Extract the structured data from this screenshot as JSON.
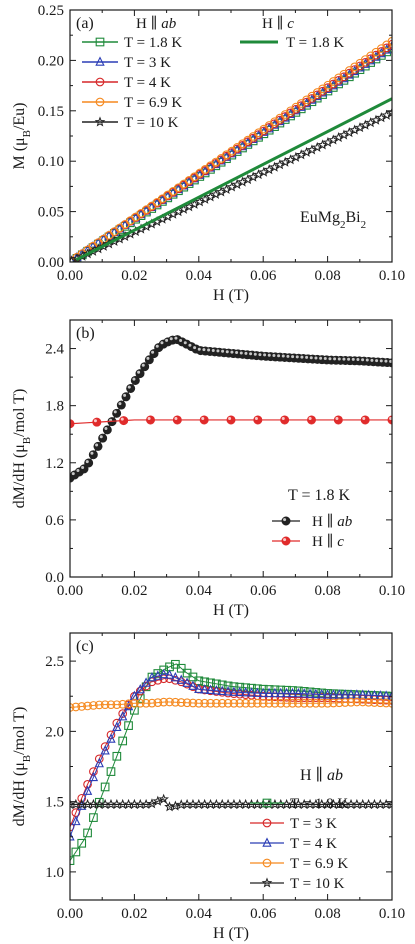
{
  "chart_data": [
    {
      "type": "line",
      "panel_label": "(a)",
      "xlabel": "H (T)",
      "ylabel": "M (μB/Eu)",
      "xlim": [
        0,
        0.1
      ],
      "ylim": [
        0,
        0.25
      ],
      "xticks": [
        "0.00",
        "0.02",
        "0.04",
        "0.06",
        "0.08",
        "0.10"
      ],
      "yticks": [
        "0.00",
        "0.05",
        "0.10",
        "0.15",
        "0.20",
        "0.25"
      ],
      "legend_headers": [
        "H ∥ ab",
        "H ∥ c"
      ],
      "annotation": "EuMg2Bi2",
      "series": [
        {
          "name": "T = 1.8 K",
          "group": "H ∥ ab",
          "color": "#1f8a3a",
          "marker": "square",
          "slope": 2.13,
          "y0": -0.001
        },
        {
          "name": "T = 3 K",
          "group": "H ∥ ab",
          "color": "#2b3db5",
          "marker": "triangle",
          "slope": 2.14,
          "y0": 0.0
        },
        {
          "name": "T = 4 K",
          "group": "H ∥ ab",
          "color": "#d62728",
          "marker": "circle",
          "slope": 2.16,
          "y0": 0.0
        },
        {
          "name": "T = 6.9 K",
          "group": "H ∥ ab",
          "color": "#f5891f",
          "marker": "circle",
          "slope": 2.19,
          "y0": 0.0
        },
        {
          "name": "T = 10 K",
          "group": "H ∥ ab",
          "color": "#222222",
          "marker": "star",
          "slope": 1.48,
          "y0": 0.0
        },
        {
          "name": "T = 1.8 K",
          "group": "H ∥ c",
          "color": "#1f8a3a",
          "marker": "line",
          "slope": 1.63,
          "y0": -0.001
        }
      ]
    },
    {
      "type": "line",
      "panel_label": "(b)",
      "xlabel": "H (T)",
      "ylabel": "dM/dH (μB/mol T)",
      "xlim": [
        0,
        0.1
      ],
      "ylim": [
        0,
        2.7
      ],
      "xticks": [
        "0.00",
        "0.02",
        "0.04",
        "0.06",
        "0.08",
        "0.10"
      ],
      "yticks": [
        "0.0",
        "0.6",
        "1.2",
        "1.8",
        "2.4"
      ],
      "annotation": "T = 1.8 K",
      "series": [
        {
          "name": "H ∥ ab",
          "color": "#222222",
          "marker": "ball",
          "x": [
            0.0,
            0.005,
            0.01,
            0.015,
            0.02,
            0.025,
            0.028,
            0.031,
            0.033,
            0.036,
            0.04,
            0.05,
            0.06,
            0.07,
            0.08,
            0.09,
            0.1
          ],
          "y": [
            1.04,
            1.15,
            1.45,
            1.75,
            2.05,
            2.3,
            2.43,
            2.48,
            2.5,
            2.45,
            2.38,
            2.35,
            2.32,
            2.3,
            2.28,
            2.27,
            2.25
          ]
        },
        {
          "name": "H ∥ c",
          "color": "#e02b2b",
          "marker": "ball",
          "x": [
            0.0,
            0.005,
            0.01,
            0.015,
            0.02,
            0.03,
            0.04,
            0.05,
            0.06,
            0.07,
            0.08,
            0.09,
            0.1
          ],
          "y": [
            1.61,
            1.62,
            1.63,
            1.64,
            1.65,
            1.65,
            1.65,
            1.65,
            1.65,
            1.65,
            1.65,
            1.65,
            1.65
          ]
        }
      ]
    },
    {
      "type": "scatter",
      "panel_label": "(c)",
      "xlabel": "H (T)",
      "ylabel": "dM/dH (μB/mol T)",
      "xlim": [
        0,
        0.1
      ],
      "ylim": [
        0.8,
        2.7
      ],
      "xticks": [
        "0.00",
        "0.02",
        "0.04",
        "0.06",
        "0.08",
        "0.10"
      ],
      "yticks": [
        "1.0",
        "1.5",
        "2.0",
        "2.5"
      ],
      "annotation": "H ∥ ab",
      "series": [
        {
          "name": "T = 1.8 K",
          "color": "#1f8a3a",
          "marker": "square",
          "x": [
            0.0,
            0.005,
            0.01,
            0.015,
            0.02,
            0.025,
            0.03,
            0.033,
            0.036,
            0.04,
            0.05,
            0.06,
            0.07,
            0.08,
            0.09,
            0.1
          ],
          "y": [
            1.08,
            1.25,
            1.55,
            1.85,
            2.15,
            2.38,
            2.45,
            2.48,
            2.42,
            2.36,
            2.32,
            2.3,
            2.29,
            2.27,
            2.26,
            2.25
          ]
        },
        {
          "name": "T = 3 K",
          "color": "#d62728",
          "marker": "circle",
          "x": [
            0.0,
            0.005,
            0.01,
            0.015,
            0.02,
            0.025,
            0.03,
            0.035,
            0.04,
            0.05,
            0.06,
            0.07,
            0.08,
            0.09,
            0.1
          ],
          "y": [
            1.32,
            1.6,
            1.85,
            2.08,
            2.25,
            2.35,
            2.38,
            2.35,
            2.3,
            2.27,
            2.25,
            2.24,
            2.24,
            2.23,
            2.22
          ]
        },
        {
          "name": "T = 4 K",
          "color": "#2b3db5",
          "marker": "triangle",
          "x": [
            0.0,
            0.005,
            0.01,
            0.015,
            0.02,
            0.025,
            0.03,
            0.035,
            0.04,
            0.05,
            0.06,
            0.07,
            0.08,
            0.09,
            0.1
          ],
          "y": [
            1.25,
            1.55,
            1.82,
            2.05,
            2.25,
            2.38,
            2.41,
            2.36,
            2.3,
            2.28,
            2.27,
            2.27,
            2.26,
            2.26,
            2.25
          ]
        },
        {
          "name": "T = 6.9 K",
          "color": "#f5891f",
          "marker": "circle",
          "x": [
            0.0,
            0.005,
            0.01,
            0.015,
            0.02,
            0.025,
            0.03,
            0.04,
            0.05,
            0.06,
            0.07,
            0.08,
            0.09,
            0.1
          ],
          "y": [
            2.17,
            2.18,
            2.19,
            2.19,
            2.2,
            2.2,
            2.21,
            2.2,
            2.2,
            2.2,
            2.2,
            2.2,
            2.21,
            2.2
          ]
        },
        {
          "name": "T = 10 K",
          "color": "#222222",
          "marker": "star",
          "x": [
            0.0,
            0.005,
            0.01,
            0.015,
            0.02,
            0.025,
            0.029,
            0.031,
            0.035,
            0.04,
            0.05,
            0.06,
            0.07,
            0.08,
            0.09,
            0.1
          ],
          "y": [
            1.48,
            1.48,
            1.48,
            1.48,
            1.48,
            1.48,
            1.52,
            1.46,
            1.48,
            1.48,
            1.48,
            1.48,
            1.48,
            1.48,
            1.48,
            1.48
          ]
        }
      ]
    }
  ]
}
